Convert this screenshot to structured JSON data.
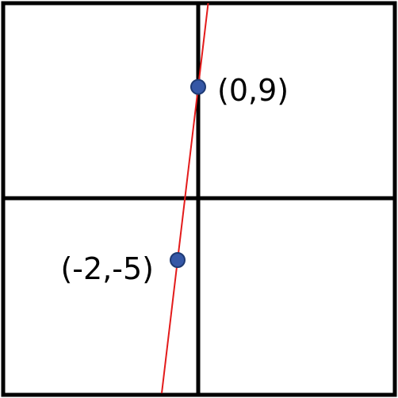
{
  "diagram": {
    "colors": {
      "frame": "#000000",
      "axes": "#000000",
      "line": "#e31b1b",
      "point_fill": "#3557a6",
      "point_stroke": "#1e3a73",
      "background": "#ffffff"
    },
    "points": [
      {
        "label": "(0,9)",
        "x": 0,
        "y": 9
      },
      {
        "label": "(-2,-5)",
        "x": -2,
        "y": -5
      }
    ]
  }
}
